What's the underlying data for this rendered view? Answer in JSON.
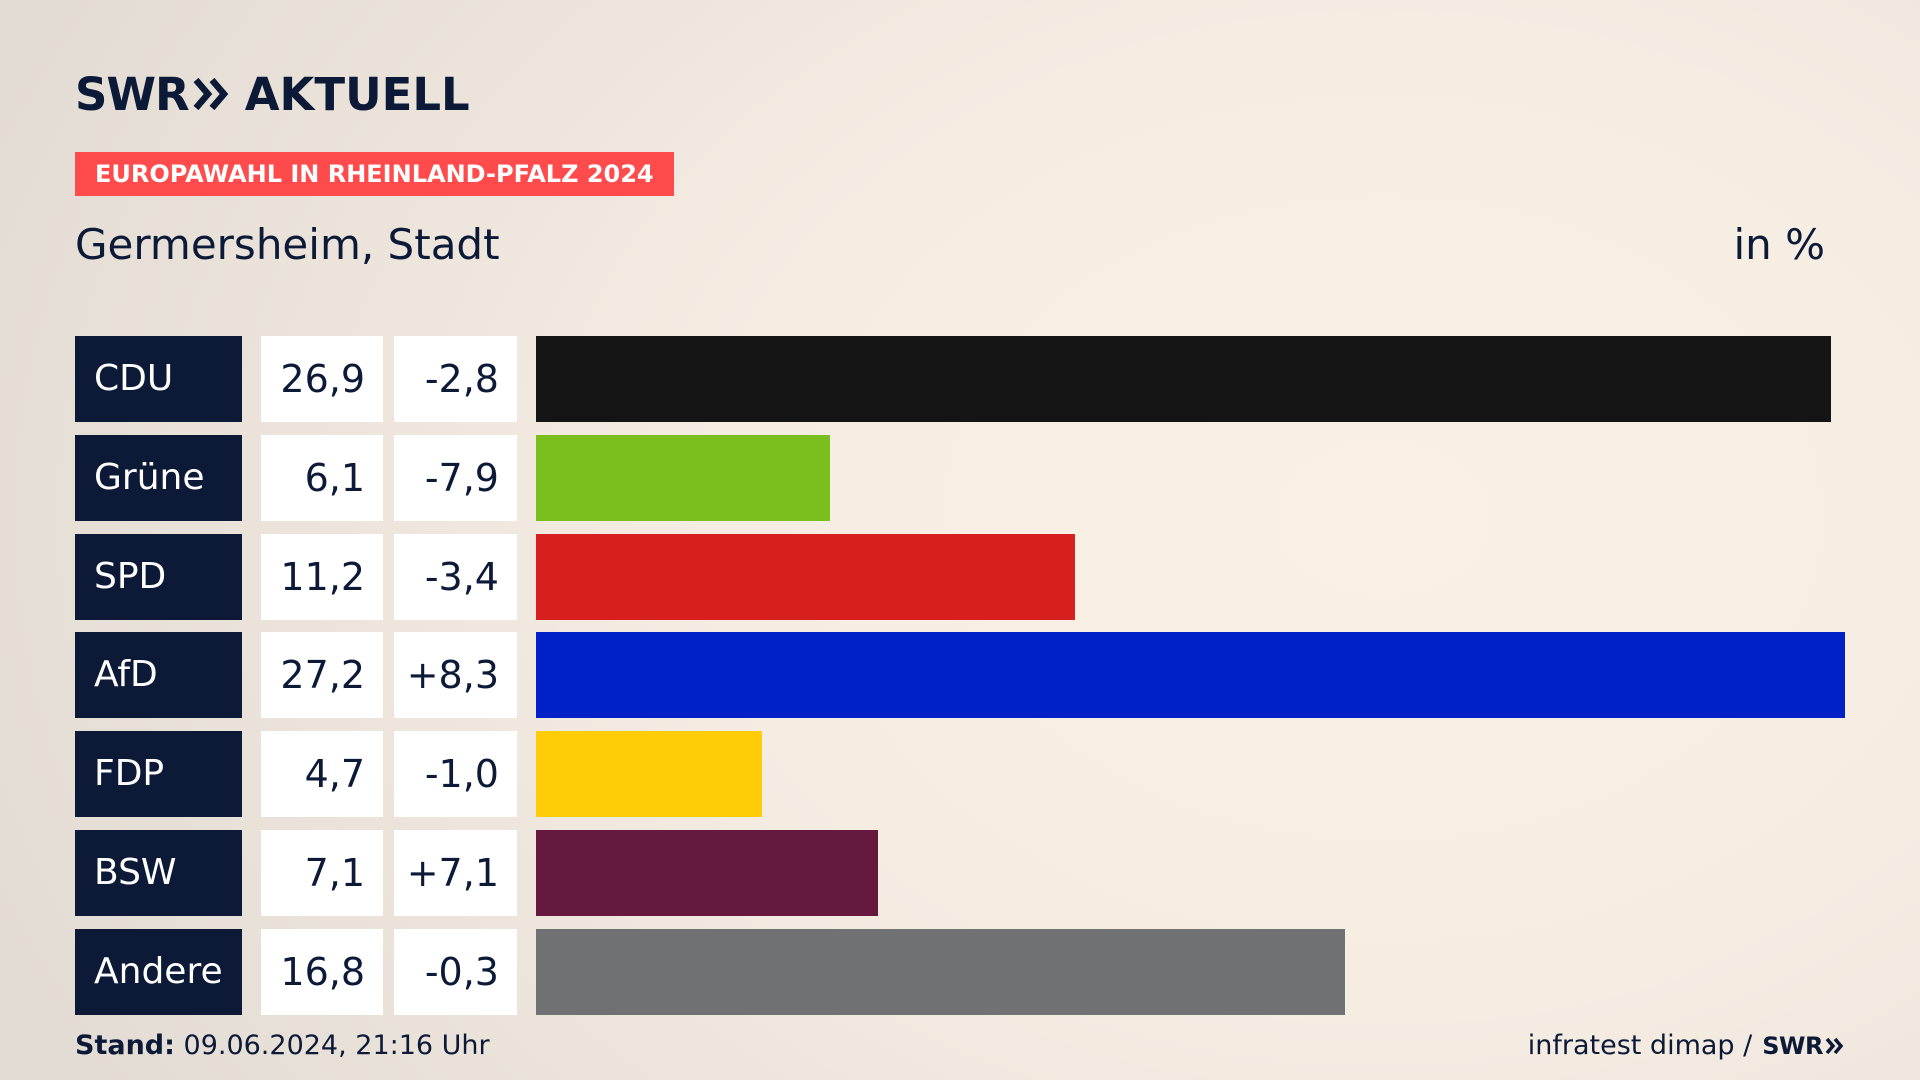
{
  "header": {
    "brand_swr": "SWR",
    "brand_aktuell": "AKTUELL",
    "badge": "EUROPAWAHL IN RHEINLAND-PFALZ 2024",
    "title": "Germersheim, Stadt",
    "unit": "in %"
  },
  "colors": {
    "navy": "#0c1a38",
    "badge": "#ff4b4b"
  },
  "chart_data": {
    "type": "bar",
    "orientation": "horizontal",
    "title": "Germersheim, Stadt",
    "unit": "in %",
    "categories": [
      "CDU",
      "Grüne",
      "SPD",
      "AfD",
      "FDP",
      "BSW",
      "Andere"
    ],
    "values": [
      26.9,
      6.1,
      11.2,
      27.2,
      4.7,
      7.1,
      16.8
    ],
    "values_label": [
      "26,9",
      "6,1",
      "11,2",
      "27,2",
      "4,7",
      "7,1",
      "16,8"
    ],
    "diff_label": [
      "-2,8",
      "-7,9",
      "-3,4",
      "+8,3",
      "-1,0",
      "+7,1",
      "-0,3"
    ],
    "bar_colors": [
      "#141414",
      "#7abf1e",
      "#d71f1f",
      "#0021c7",
      "#ffcc08",
      "#66193f",
      "#707173"
    ]
  },
  "footer": {
    "stand_label": "Stand:",
    "stand_value": "09.06.2024, 21:16 Uhr",
    "source": "infratest dimap /",
    "source_brand": "SWR"
  }
}
